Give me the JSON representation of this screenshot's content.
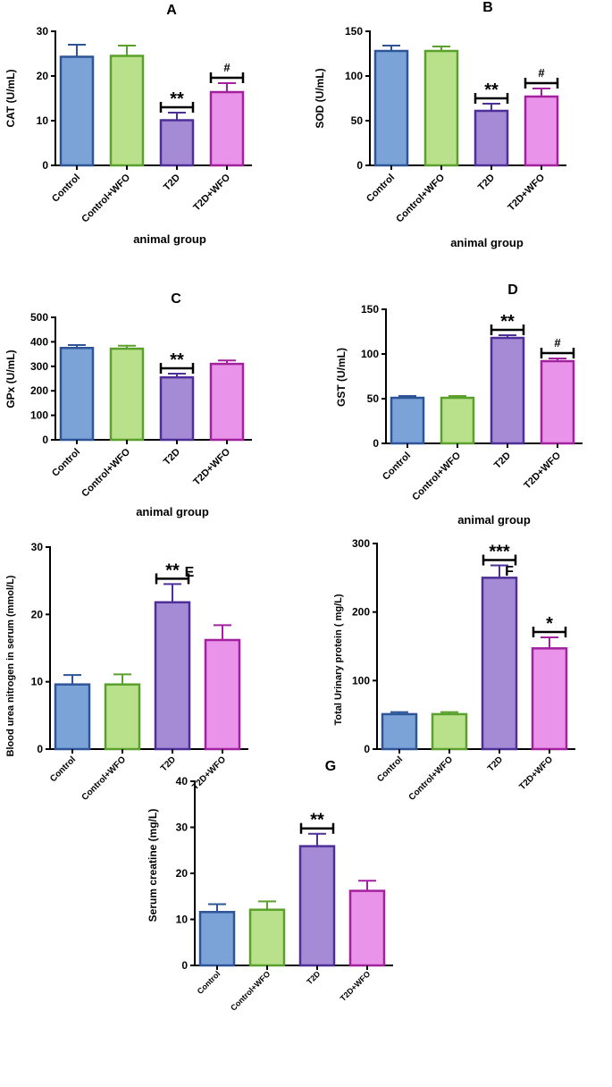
{
  "colors": {
    "Control": {
      "fill": "#7ba3d8",
      "stroke": "#2d5597"
    },
    "Control+WFO": {
      "fill": "#b9e08a",
      "stroke": "#5aa02c"
    },
    "T2D": {
      "fill": "#a58ad6",
      "stroke": "#4e2f98"
    },
    "T2D+WFO": {
      "fill": "#ea93ea",
      "stroke": "#a3209e"
    }
  },
  "chart_data": [
    {
      "type": "bar",
      "panel": "A",
      "ylabel": "CAT (U/mL)",
      "xlabel": "animal group",
      "categories": [
        "Control",
        "Control+WFO",
        "T2D",
        "T2D+WFO"
      ],
      "values": [
        24.3,
        24.5,
        10.1,
        16.4
      ],
      "errors": [
        2.7,
        2.3,
        1.7,
        2.0
      ],
      "ylim": [
        0,
        30
      ],
      "yticks": [
        0,
        10,
        20,
        30
      ],
      "significance": [
        {
          "category": "T2D",
          "label": "**"
        },
        {
          "category": "T2D+WFO",
          "label": "#"
        }
      ]
    },
    {
      "type": "bar",
      "panel": "B",
      "ylabel": "SOD (U/mL)",
      "xlabel": "animal group",
      "categories": [
        "Control",
        "Control+WFO",
        "T2D",
        "T2D+WFO"
      ],
      "values": [
        128,
        128,
        61,
        77
      ],
      "errors": [
        6,
        5,
        8,
        9
      ],
      "ylim": [
        0,
        150
      ],
      "yticks": [
        0,
        50,
        100,
        150
      ],
      "significance": [
        {
          "category": "T2D",
          "label": "**"
        },
        {
          "category": "T2D+WFO",
          "label": "#"
        }
      ]
    },
    {
      "type": "bar",
      "panel": "C",
      "ylabel": "GPx (U/mL)",
      "xlabel": "animal group",
      "categories": [
        "Control",
        "Control+WFO",
        "T2D",
        "T2D+WFO"
      ],
      "values": [
        375,
        372,
        255,
        310
      ],
      "errors": [
        12,
        12,
        15,
        14
      ],
      "ylim": [
        0,
        500
      ],
      "yticks": [
        0,
        100,
        200,
        300,
        400,
        500
      ],
      "significance": [
        {
          "category": "T2D",
          "label": "**"
        }
      ]
    },
    {
      "type": "bar",
      "panel": "D",
      "ylabel": "GST (U/mL)",
      "xlabel": "animal group",
      "categories": [
        "Control",
        "Control+WFO",
        "T2D",
        "T2D+WFO"
      ],
      "values": [
        51,
        51,
        118,
        92
      ],
      "errors": [
        2,
        2,
        3,
        3
      ],
      "ylim": [
        0,
        150
      ],
      "yticks": [
        0,
        50,
        100,
        150
      ],
      "significance": [
        {
          "category": "T2D",
          "label": "**"
        },
        {
          "category": "T2D+WFO",
          "label": "#"
        }
      ]
    },
    {
      "type": "bar",
      "panel": "E",
      "ylabel": "Blood urea nitrogen in serum (mmol/L)",
      "xlabel": "",
      "categories": [
        "Control",
        "Control+WFO",
        "T2D",
        "T2D+WFO"
      ],
      "values": [
        9.6,
        9.6,
        21.8,
        16.2
      ],
      "errors": [
        1.4,
        1.5,
        2.7,
        2.2
      ],
      "ylim": [
        0,
        30
      ],
      "yticks": [
        0,
        10,
        20,
        30
      ],
      "significance": [
        {
          "category": "T2D",
          "label": "**"
        }
      ]
    },
    {
      "type": "bar",
      "panel": "F",
      "ylabel": "Total Urinary protein ( mg/L)",
      "xlabel": "",
      "categories": [
        "Control",
        "Control+WFO",
        "T2D",
        "T2D+WFO"
      ],
      "values": [
        51,
        51,
        250,
        147
      ],
      "errors": [
        3,
        3,
        18,
        16
      ],
      "ylim": [
        0,
        300
      ],
      "yticks": [
        0,
        100,
        200,
        300
      ],
      "significance": [
        {
          "category": "T2D",
          "label": "***"
        },
        {
          "category": "T2D+WFO",
          "label": "*"
        }
      ]
    },
    {
      "type": "bar",
      "panel": "G",
      "ylabel": "Serum creatine (mg/L)",
      "xlabel": "",
      "categories": [
        "Control",
        "Control+WFO",
        "T2D",
        "T2D+WFO"
      ],
      "values": [
        11.6,
        12.1,
        25.9,
        16.2
      ],
      "errors": [
        1.7,
        1.8,
        2.7,
        2.2
      ],
      "ylim": [
        0,
        40
      ],
      "yticks": [
        0,
        10,
        20,
        30,
        40
      ],
      "significance": [
        {
          "category": "T2D",
          "label": "**"
        }
      ]
    }
  ]
}
